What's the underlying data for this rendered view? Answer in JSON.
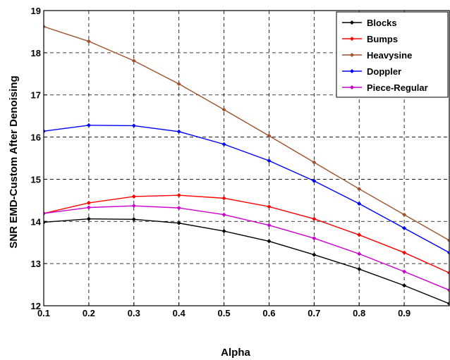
{
  "chart_data": {
    "type": "line",
    "title": "",
    "xlabel": "Alpha",
    "ylabel": "SNR EMD-Custom After Denoising",
    "xlim": [
      0.1,
      1.0
    ],
    "ylim": [
      12,
      19
    ],
    "x_ticks": [
      0.1,
      0.2,
      0.3,
      0.4,
      0.5,
      0.6,
      0.7,
      0.8,
      0.9
    ],
    "x_tick_labels": [
      "0.1",
      "0.2",
      "0.3",
      "0.4",
      "0.5",
      "0.6",
      "0.7",
      "0.8",
      "0.9"
    ],
    "y_ticks": [
      12,
      13,
      14,
      15,
      16,
      17,
      18,
      19
    ],
    "y_tick_labels": [
      "12",
      "13",
      "14",
      "15",
      "16",
      "17",
      "18",
      "19"
    ],
    "grid": true,
    "grid_style": "dashed",
    "legend_position": "top-right",
    "x": [
      0.1,
      0.2,
      0.3,
      0.4,
      0.5,
      0.6,
      0.7,
      0.8,
      0.9,
      1.0
    ],
    "series": [
      {
        "name": "Blocks",
        "color": "#000000",
        "values": [
          13.98,
          14.06,
          14.05,
          13.96,
          13.77,
          13.53,
          13.21,
          12.87,
          12.48,
          12.05
        ]
      },
      {
        "name": "Bumps",
        "color": "#ff0000",
        "values": [
          14.19,
          14.44,
          14.59,
          14.62,
          14.55,
          14.35,
          14.06,
          13.68,
          13.26,
          12.78
        ]
      },
      {
        "name": "Heavysine",
        "color": "#a0522d",
        "values": [
          18.62,
          18.27,
          17.81,
          17.26,
          16.65,
          16.03,
          15.4,
          14.77,
          14.16,
          13.55
        ]
      },
      {
        "name": "Doppler",
        "color": "#0000ff",
        "values": [
          16.14,
          16.28,
          16.27,
          16.13,
          15.83,
          15.44,
          14.96,
          14.42,
          13.84,
          13.26
        ]
      },
      {
        "name": "Piece-Regular",
        "color": "#cc00cc",
        "values": [
          14.19,
          14.33,
          14.37,
          14.32,
          14.16,
          13.91,
          13.6,
          13.23,
          12.81,
          12.37
        ]
      }
    ]
  }
}
